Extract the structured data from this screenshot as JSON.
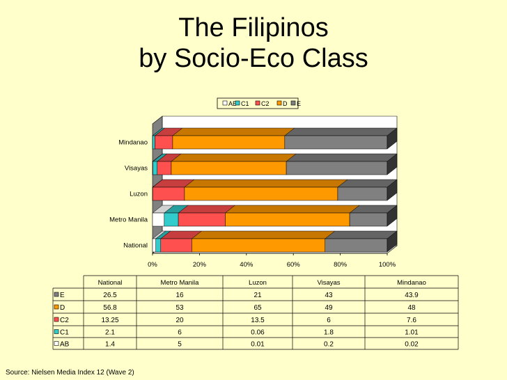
{
  "title": {
    "line1": "The Filipinos",
    "line2": "by Socio-Eco Class"
  },
  "source": "Source:  Nielsen Media Index 12 (Wave 2)",
  "colors": {
    "AB": "#FFFFFF",
    "C1": "#33CCCC",
    "C2": "#FF5050",
    "D": "#FF9900",
    "E": "#808080"
  },
  "chart_data": {
    "type": "bar",
    "orientation": "horizontal",
    "stacked": "percent",
    "title": "The Filipinos\nby Socio-Eco Class",
    "categories": [
      "National",
      "Metro Manila",
      "Luzon",
      "Visayas",
      "Mindanao"
    ],
    "series": [
      {
        "name": "AB",
        "values": [
          1.4,
          5,
          0.01,
          0.2,
          0.02
        ]
      },
      {
        "name": "C1",
        "values": [
          2.1,
          6,
          0.06,
          1.8,
          1.01
        ]
      },
      {
        "name": "C2",
        "values": [
          13.25,
          20,
          13.5,
          6,
          7.6
        ]
      },
      {
        "name": "D",
        "values": [
          56.8,
          53,
          65,
          49,
          48
        ]
      },
      {
        "name": "E",
        "values": [
          26.5,
          16,
          21,
          43,
          43.9
        ]
      }
    ],
    "x_ticks": [
      "0%",
      "20%",
      "40%",
      "60%",
      "80%",
      "100%"
    ],
    "xlim": [
      0,
      100
    ],
    "legend": "top",
    "grid": false,
    "three_d": true,
    "data_table": {
      "columns": [
        "National",
        "Metro Manila",
        "Luzon",
        "Visayas",
        "Mindanao"
      ],
      "row_order": [
        "E",
        "D",
        "C2",
        "C1",
        "AB"
      ],
      "rows": {
        "E": [
          "26.5",
          "16",
          "21",
          "43",
          "43.9"
        ],
        "D": [
          "56.8",
          "53",
          "65",
          "49",
          "48"
        ],
        "C2": [
          "13.25",
          "20",
          "13.5",
          "6",
          "7.6"
        ],
        "C1": [
          "2.1",
          "6",
          "0.06",
          "1.8",
          "1.01"
        ],
        "AB": [
          "1.4",
          "5",
          "0.01",
          "0.2",
          "0.02"
        ]
      }
    }
  }
}
